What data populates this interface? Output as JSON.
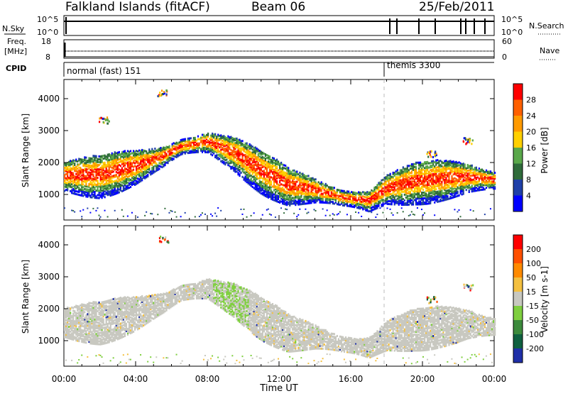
{
  "header": {
    "title": "Falkland Islands (fitACF)",
    "beam": "Beam 06",
    "date": "25/Feb/2011"
  },
  "panels": {
    "nsky": {
      "label": "N.Sky",
      "ticks": [
        "10^5",
        "10^0"
      ],
      "right_label": "N.Search",
      "right_ticks": [
        "10^5",
        "10^0"
      ]
    },
    "freq": {
      "label": "Freq.",
      "unit": "[MHz]",
      "ticks": [
        "18",
        "8"
      ],
      "right_label": "Nave",
      "right_ticks": [
        "60",
        "0"
      ]
    },
    "cpid": {
      "label": "CPID",
      "modes": [
        "normal (fast) 151",
        "themis 3300"
      ]
    }
  },
  "chart_data": [
    {
      "type": "heatmap",
      "ylabel": "Slant Range [km]",
      "xlabel": "Time UT",
      "x_ticks": [
        "00:00",
        "04:00",
        "08:00",
        "12:00",
        "16:00",
        "20:00",
        "00:00"
      ],
      "y_ticks": [
        "1000",
        "2000",
        "3000",
        "4000"
      ],
      "ylim": [
        200,
        4600
      ],
      "colorbar": {
        "label": "Power [dB]",
        "ticks": [
          "28",
          "24",
          "20",
          "16",
          "12",
          "8",
          "4"
        ],
        "colors": [
          "#0000ff",
          "#1f3fa8",
          "#2f6b3a",
          "#5aa84a",
          "#ffd000",
          "#ff9a00",
          "#ff6000",
          "#ff0000"
        ]
      },
      "bands": [
        {
          "t": [
            0.0,
            2.0,
            4.0,
            5.5,
            6.5,
            8.0,
            9.5,
            11.0,
            12.5,
            14.0,
            15.5,
            17.0,
            18.0,
            19.5,
            21.0,
            22.5,
            24.0
          ],
          "r": [
            1600,
            1620,
            1900,
            2200,
            2500,
            2650,
            2300,
            1750,
            1300,
            1150,
            900,
            800,
            1200,
            1400,
            1500,
            1550,
            1450
          ]
        }
      ]
    },
    {
      "type": "heatmap",
      "ylabel": "Slant Range [km]",
      "xlabel": "Time UT",
      "x_ticks": [
        "00:00",
        "04:00",
        "08:00",
        "12:00",
        "16:00",
        "20:00",
        "00:00"
      ],
      "y_ticks": [
        "1000",
        "2000",
        "3000",
        "4000"
      ],
      "ylim": [
        200,
        4600
      ],
      "colorbar": {
        "label": "Velocity [m s-1]",
        "ticks": [
          "200",
          "100",
          "50",
          "15",
          "-15",
          "-50",
          "-100",
          "-200"
        ],
        "colors": [
          "#1f2fa8",
          "#0f6040",
          "#3c8a3c",
          "#7fcf3f",
          "#c8c8c0",
          "#f4c040",
          "#ff8a00",
          "#ff5000",
          "#ff0000"
        ]
      }
    }
  ],
  "xlabel": "Time UT"
}
